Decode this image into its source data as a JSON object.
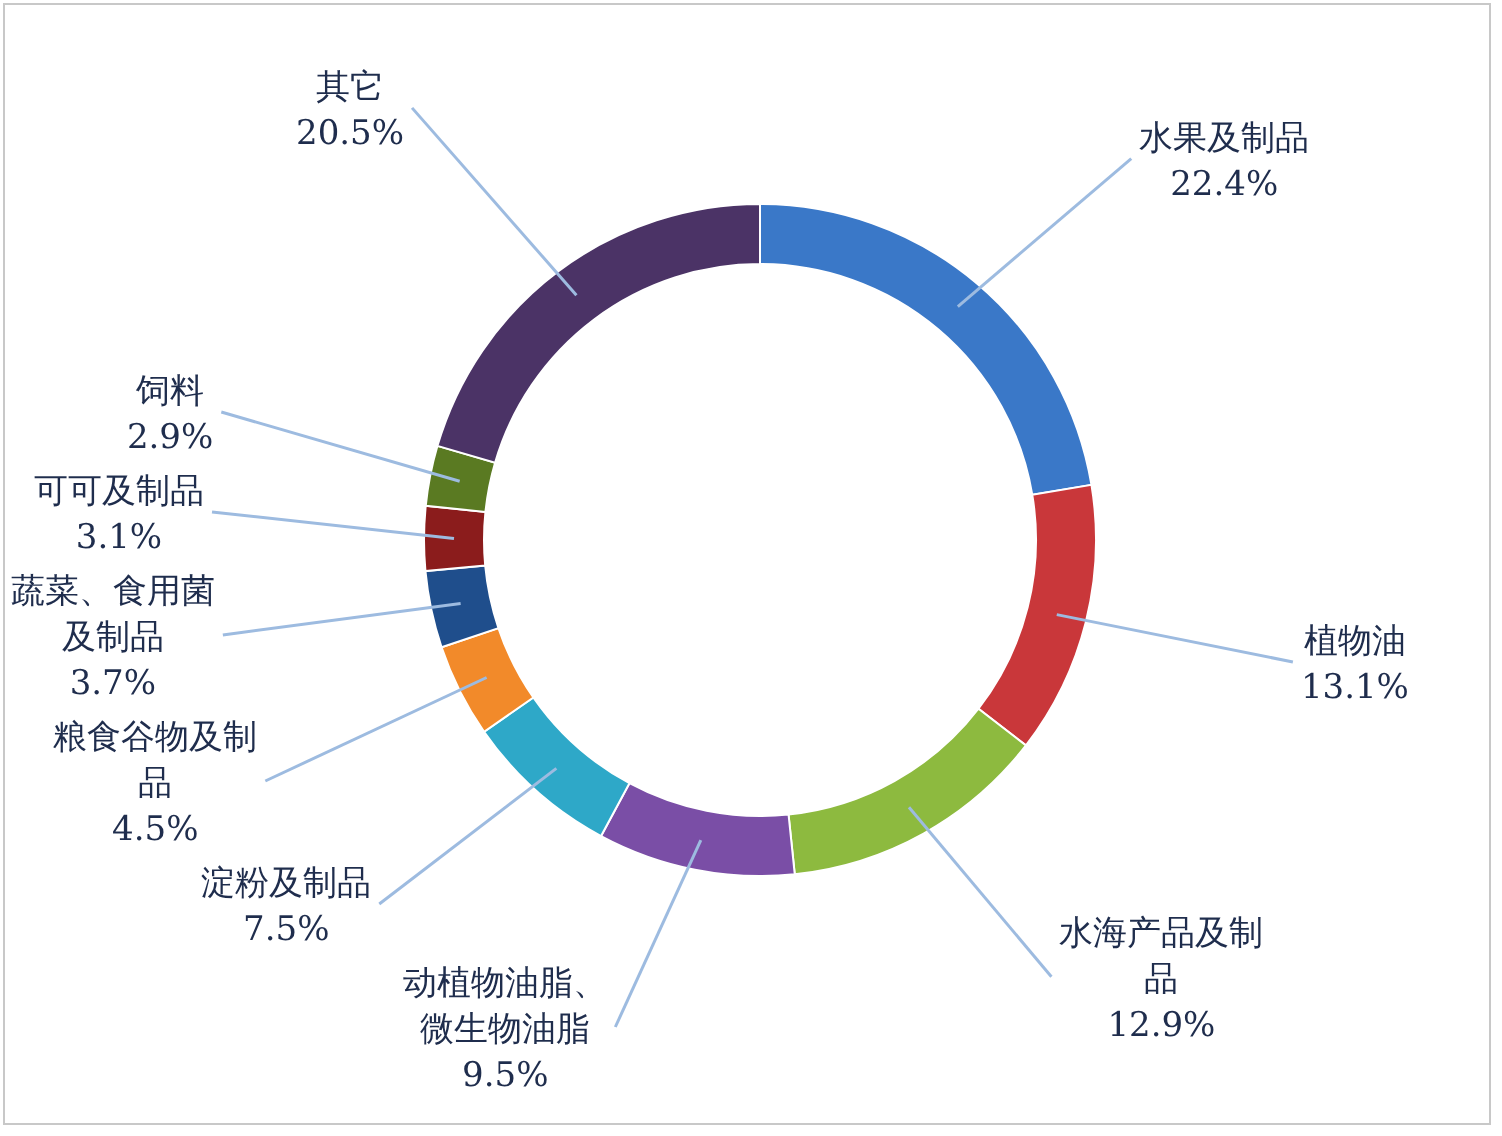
{
  "chart_data": {
    "type": "donut",
    "categories": [
      "水果及制品",
      "植物油",
      "水海产品及制品",
      "动植物油脂、微生物油脂",
      "淀粉及制品",
      "粮食谷物及制品",
      "蔬菜、食用菌及制品",
      "可可及制品",
      "饲料",
      "其它"
    ],
    "values": [
      22.4,
      13.1,
      12.9,
      9.5,
      7.5,
      4.5,
      3.7,
      3.1,
      2.9,
      20.5
    ],
    "colors": [
      "#3a78c8",
      "#c9373a",
      "#8dba3f",
      "#7a4ea6",
      "#2ea8c8",
      "#f28a2a",
      "#1f4e8c",
      "#8b1c1c",
      "#5a7a22",
      "#4b3366"
    ],
    "value_labels": [
      "22.4%",
      "13.1%",
      "12.9%",
      "9.5%",
      "7.5%",
      "4.5%",
      "3.7%",
      "3.1%",
      "2.9%",
      "20.5%"
    ],
    "legend": false
  }
}
